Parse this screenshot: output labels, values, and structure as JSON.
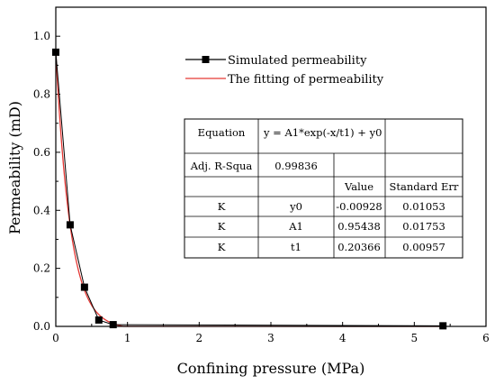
{
  "chart_data": {
    "type": "scatter",
    "xlabel": "Confining pressure (MPa)",
    "ylabel": "Permeability (mD)",
    "xlim": [
      0,
      6
    ],
    "ylim": [
      0,
      1.1
    ],
    "xticks": [
      0,
      1,
      2,
      3,
      4,
      5,
      6
    ],
    "yticks": [
      0.0,
      0.2,
      0.4,
      0.6,
      0.8,
      1.0
    ],
    "ytick_labels": [
      "0.0",
      "0.2",
      "0.4",
      "0.6",
      "0.8",
      "1.0"
    ],
    "legend_position": "top-right",
    "series": [
      {
        "name": "Simulated permeability",
        "style": "line-with-square-markers",
        "color": "#000000",
        "x": [
          0,
          0.2,
          0.4,
          0.6,
          0.8,
          5.4
        ],
        "y": [
          0.945,
          0.35,
          0.135,
          0.022,
          0.006,
          0.002
        ]
      },
      {
        "name": "The fitting of permeability",
        "style": "line",
        "color": "#e53935",
        "equation": {
          "A1": 0.95438,
          "t1": 0.20366,
          "y0": -0.00928
        }
      }
    ],
    "table": {
      "equation_label": "Equation",
      "equation": "y = A1*exp(-x/t1) + y0",
      "adj_label": "Adj. R-Squa",
      "adj_value": "0.99836",
      "header_value": "Value",
      "header_err": "Standard Err",
      "rows": [
        {
          "group": "K",
          "param": "y0",
          "value": "-0.00928",
          "err": "0.01053"
        },
        {
          "group": "K",
          "param": "A1",
          "value": "0.95438",
          "err": "0.01753"
        },
        {
          "group": "K",
          "param": "t1",
          "value": "0.20366",
          "err": "0.00957"
        }
      ]
    }
  }
}
